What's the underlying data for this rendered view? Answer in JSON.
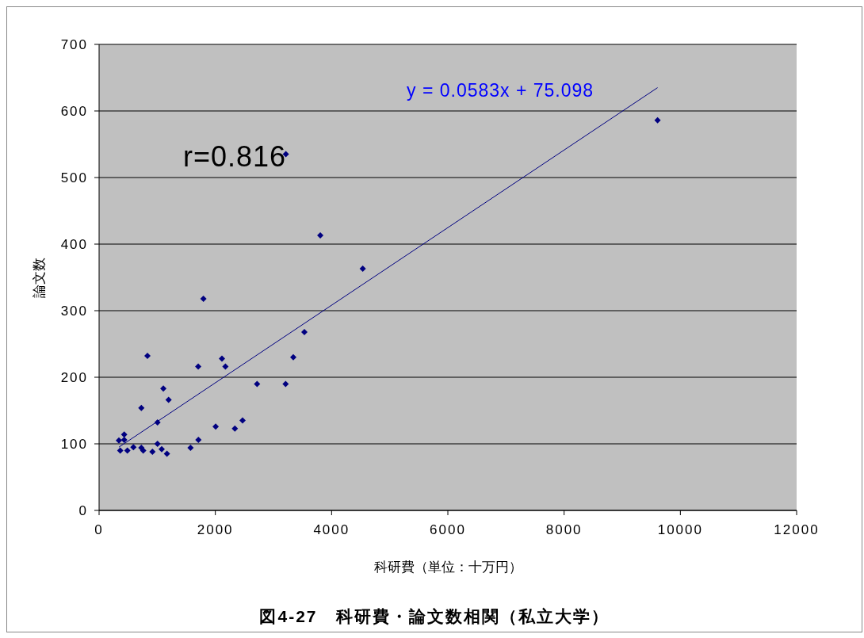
{
  "chart_data": {
    "type": "scatter",
    "title": "図4-27　科研費・論文数相関（私立大学）",
    "xlabel": "科研費（単位：十万円）",
    "ylabel": "論文数",
    "annotations": [
      "y = 0.0583x + 75.098",
      "r=0.816"
    ],
    "series": [
      {
        "color": "#000080",
        "marker": "diamond",
        "x": [
          832,
          2114,
          1705,
          2173,
          3341,
          2718,
          3209,
          1105,
          1196,
          727,
          1005,
          2468,
          2005,
          2336,
          432,
          341,
          432,
          1709,
          1005,
          364,
          487,
          591,
          727,
          759,
          918,
          1077,
          1168,
          1573,
          3805,
          4536,
          1795,
          3532,
          3213,
          9608
        ],
        "values": [
          232,
          228,
          216,
          216,
          230,
          190,
          190,
          183,
          166,
          154,
          132,
          135,
          126,
          123,
          114,
          105,
          106,
          106,
          100,
          90,
          90,
          95,
          94,
          90,
          88,
          92,
          85,
          94,
          413,
          363,
          318,
          268,
          535,
          586
        ]
      },
      {
        "type": "line",
        "color": "#000080",
        "marker": "none",
        "x": [
          341,
          9608
        ],
        "values": [
          95,
          635
        ]
      }
    ],
    "xlim": [
      0,
      12000
    ],
    "xticks": [
      0,
      2000,
      4000,
      6000,
      8000,
      10000,
      12000
    ],
    "ylim": [
      0,
      700
    ],
    "yticks": [
      0,
      100,
      200,
      300,
      400,
      500,
      600,
      700
    ],
    "grid": "y",
    "legend": false
  }
}
